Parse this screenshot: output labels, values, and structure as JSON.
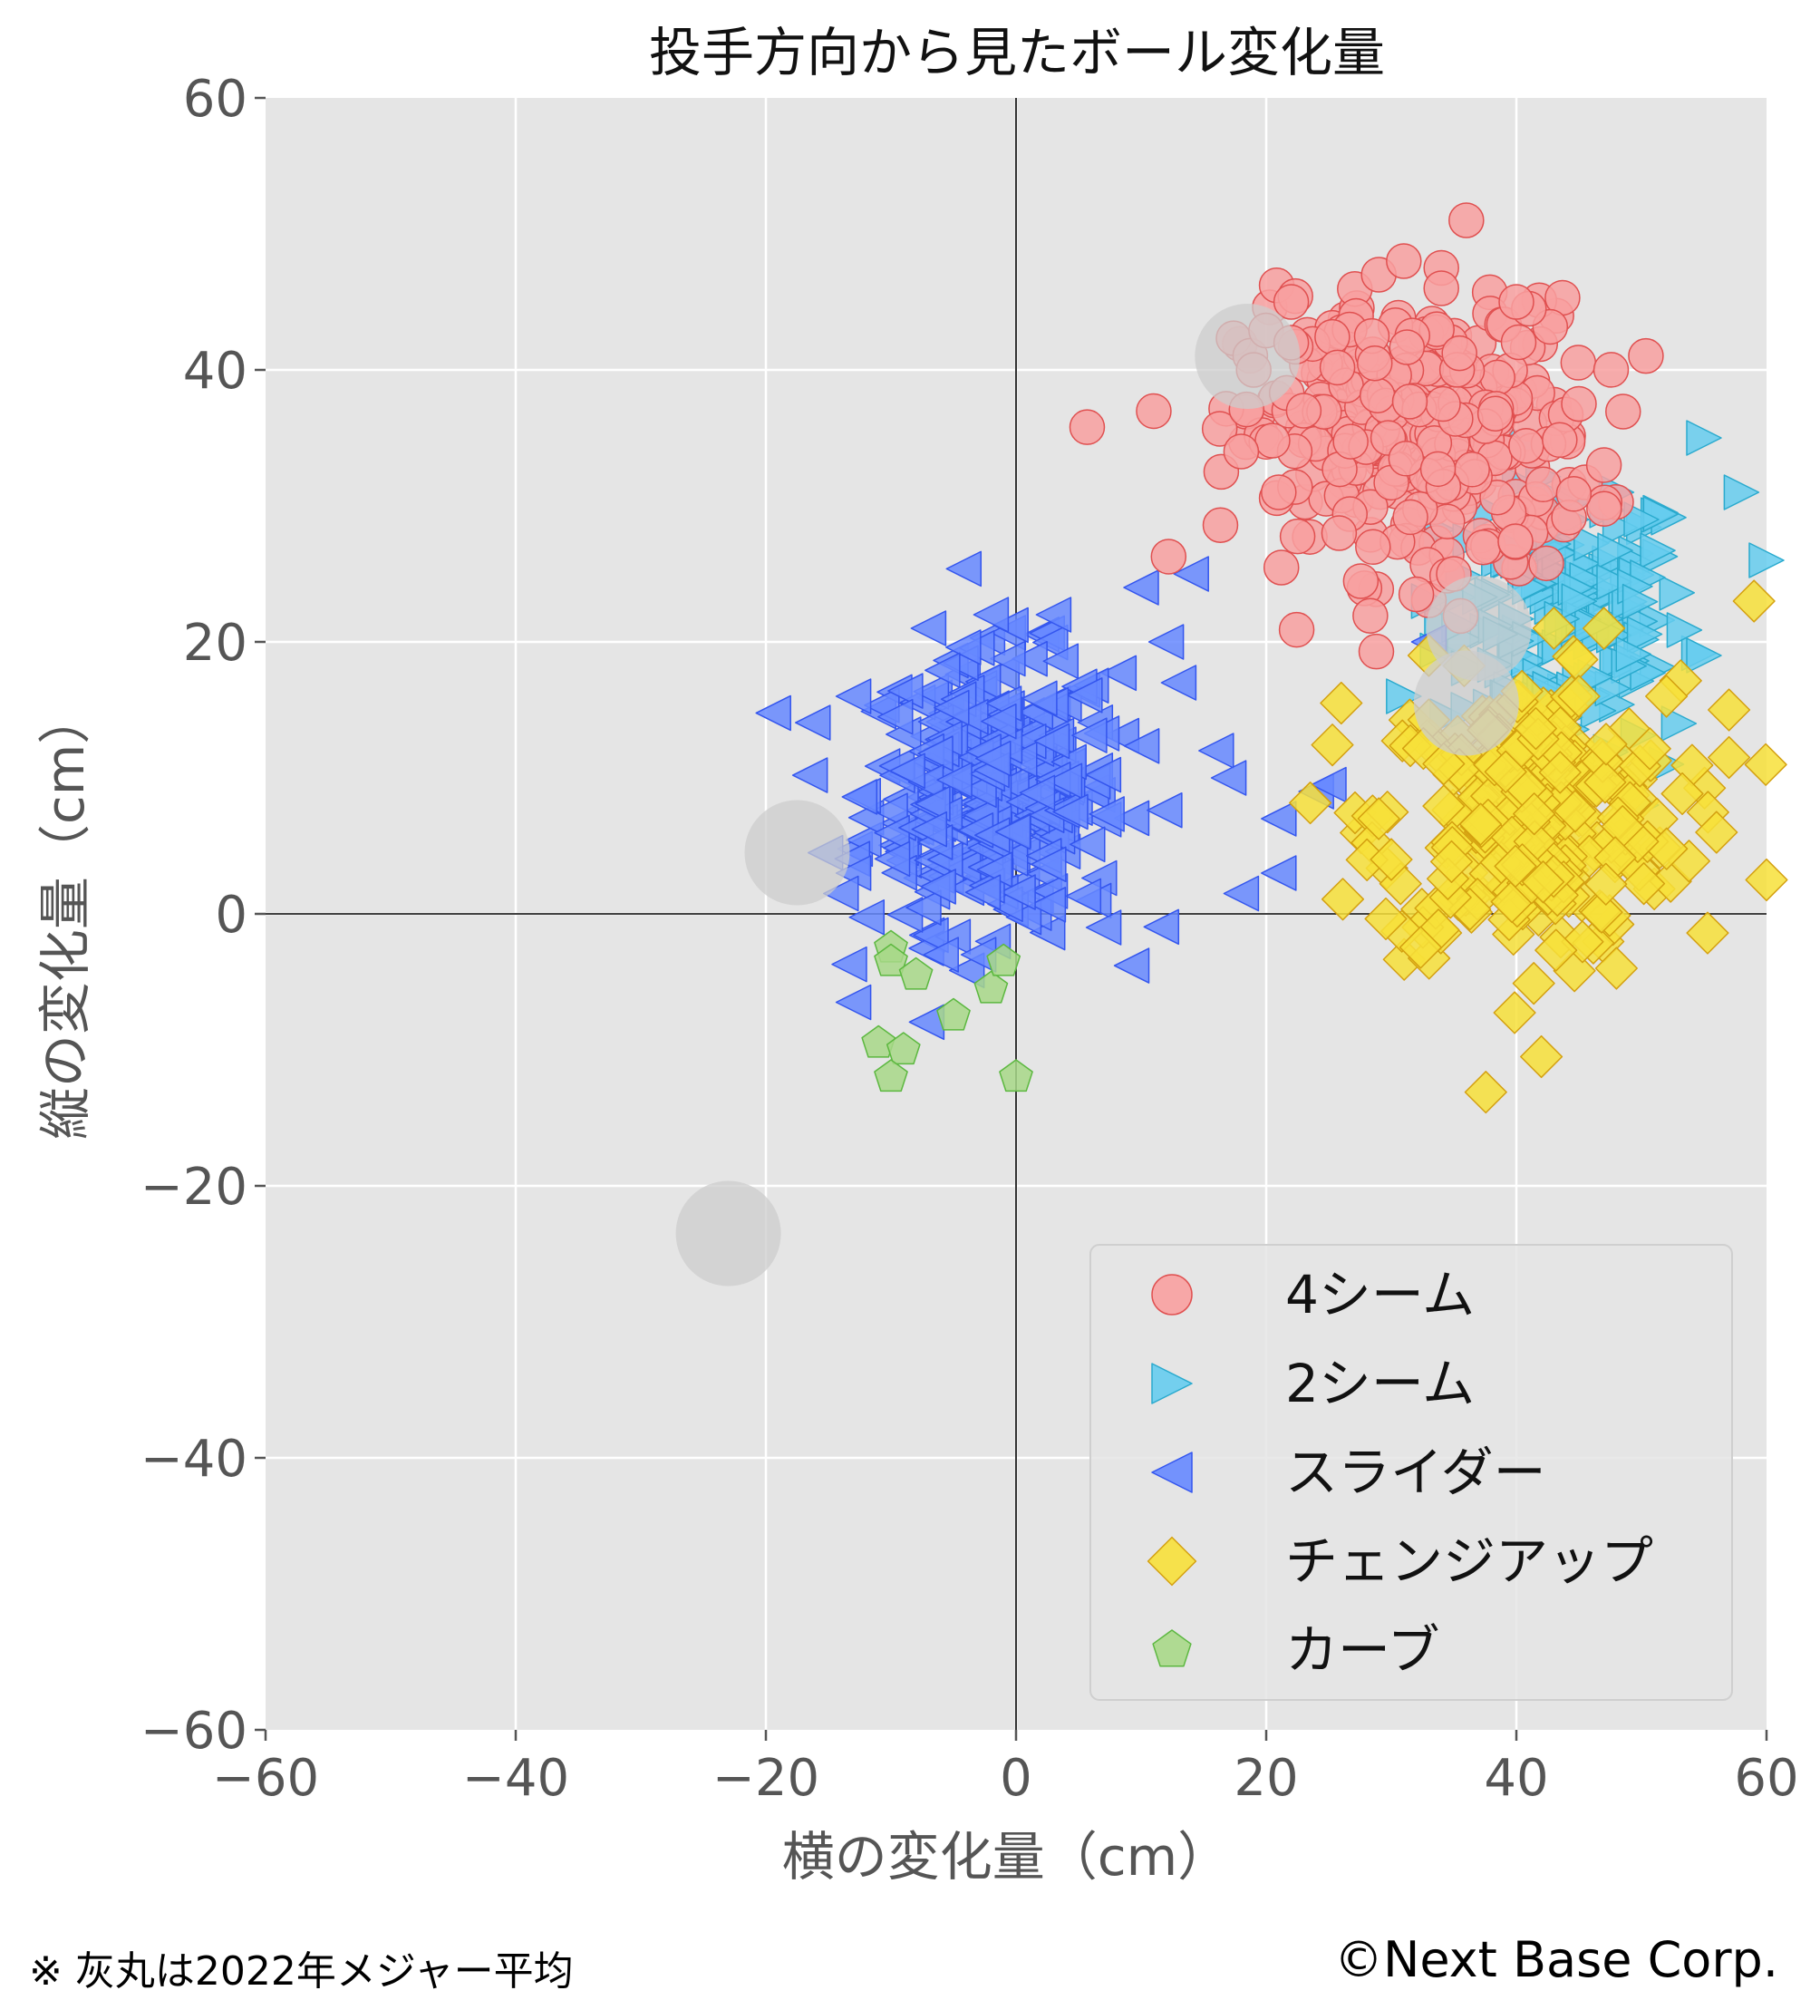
{
  "chart_data": {
    "type": "scatter",
    "title": "投手方向から見たボール変化量",
    "xlabel": "横の変化量（cm）",
    "ylabel": "縦の変化量（cm）",
    "xlim": [
      -60,
      60
    ],
    "ylim": [
      -60,
      60
    ],
    "xticks": [
      -60,
      -40,
      -20,
      0,
      20,
      40,
      60
    ],
    "yticks": [
      -60,
      -40,
      -20,
      0,
      20,
      40,
      60
    ],
    "xtick_labels": [
      "−60",
      "−40",
      "−20",
      "0",
      "20",
      "40",
      "60"
    ],
    "ytick_labels": [
      "−60",
      "−40",
      "−20",
      "0",
      "20",
      "40",
      "60"
    ],
    "grid": true,
    "legend_position": "bottom-right",
    "colors": {
      "background": "#e5e5e5",
      "grid": "#ffffff",
      "tick_text": "#555555"
    },
    "series": [
      {
        "name": "4シーム",
        "marker": "circle",
        "color": "#f8a0a0",
        "edge": "#e05050",
        "cluster": {
          "center": [
            32,
            35
          ],
          "spread": [
            7,
            5
          ],
          "count": 320
        },
        "points": [
          [
            36,
            51
          ],
          [
            29,
            47
          ],
          [
            31,
            48
          ],
          [
            34,
            47.5
          ],
          [
            34,
            46
          ],
          [
            41,
            44.5
          ],
          [
            40,
            45
          ],
          [
            22,
            45
          ],
          [
            19,
            40
          ],
          [
            23,
            37
          ],
          [
            22,
            42
          ],
          [
            18,
            34
          ],
          [
            21,
            31
          ],
          [
            47,
            33
          ],
          [
            45,
            37.5
          ],
          [
            32,
            23.5
          ],
          [
            35,
            25
          ]
        ]
      },
      {
        "name": "2シーム",
        "marker": "triangle-right",
        "color": "#66ccee",
        "edge": "#2aaace",
        "cluster": {
          "center": [
            44,
            22
          ],
          "spread": [
            5,
            5
          ],
          "count": 150
        },
        "points": [
          [
            55,
            35
          ],
          [
            58,
            31
          ],
          [
            60,
            26
          ],
          [
            48,
            31
          ],
          [
            50,
            29
          ],
          [
            55,
            19
          ],
          [
            53,
            14
          ],
          [
            52,
            11
          ],
          [
            44,
            10
          ],
          [
            33,
            23
          ],
          [
            31,
            16
          ],
          [
            50,
            8
          ]
        ]
      },
      {
        "name": "スライダー",
        "marker": "triangle-left",
        "color": "#6688ff",
        "edge": "#3355ee",
        "cluster": {
          "center": [
            -2,
            9
          ],
          "spread": [
            5,
            5
          ],
          "count": 330
        },
        "points": [
          [
            14,
            25
          ],
          [
            10,
            24
          ],
          [
            12,
            20
          ],
          [
            3,
            22
          ],
          [
            -2,
            22
          ],
          [
            -7,
            21
          ],
          [
            -13,
            16
          ],
          [
            -13,
            3
          ],
          [
            -14,
            1.5
          ],
          [
            -13,
            -6.5
          ],
          [
            -6,
            -3
          ],
          [
            -3,
            -3
          ],
          [
            18,
            1.5
          ],
          [
            21,
            3
          ],
          [
            21,
            7
          ],
          [
            24,
            9
          ],
          [
            25,
            9.5
          ],
          [
            7,
            -1
          ],
          [
            13,
            17
          ],
          [
            16,
            12
          ],
          [
            17,
            10
          ],
          [
            33,
            20
          ]
        ]
      },
      {
        "name": "チェンジアップ",
        "marker": "diamond",
        "color": "#f7e03a",
        "edge": "#d4a010",
        "cluster": {
          "center": [
            41,
            7
          ],
          "spread": [
            6,
            5
          ],
          "count": 280
        },
        "points": [
          [
            42,
            -10.5
          ],
          [
            48,
            -4
          ],
          [
            26,
            15.5
          ],
          [
            29,
            7
          ],
          [
            57,
            15
          ],
          [
            60,
            2.5
          ],
          [
            56,
            6
          ],
          [
            59,
            23
          ],
          [
            57,
            11.5
          ],
          [
            33,
            19
          ],
          [
            43,
            21
          ],
          [
            45,
            16
          ],
          [
            47,
            21
          ],
          [
            52,
            16
          ],
          [
            30,
            4
          ]
        ]
      },
      {
        "name": "カーブ",
        "marker": "pentagon",
        "color": "#a8d888",
        "edge": "#5cb840",
        "points": [
          [
            -10,
            -2.5
          ],
          [
            -10,
            -3.5
          ],
          [
            -8,
            -4.5
          ],
          [
            -5,
            -7.5
          ],
          [
            -2,
            -5.5
          ],
          [
            -1,
            -3.5
          ],
          [
            -11,
            -9.5
          ],
          [
            -9,
            -10
          ],
          [
            -10,
            -12
          ],
          [
            0,
            -12
          ]
        ]
      }
    ],
    "reference_points": {
      "label": "2022年メジャー平均",
      "color": "#cccccc",
      "points": [
        [
          18.5,
          41
        ],
        [
          -17.5,
          4.5
        ],
        [
          -23,
          -23.5
        ],
        [
          36,
          15.5
        ],
        [
          37,
          21
        ]
      ]
    }
  },
  "footnote": "※ 灰丸は2022年メジャー平均",
  "credit": "©Next Base Corp."
}
